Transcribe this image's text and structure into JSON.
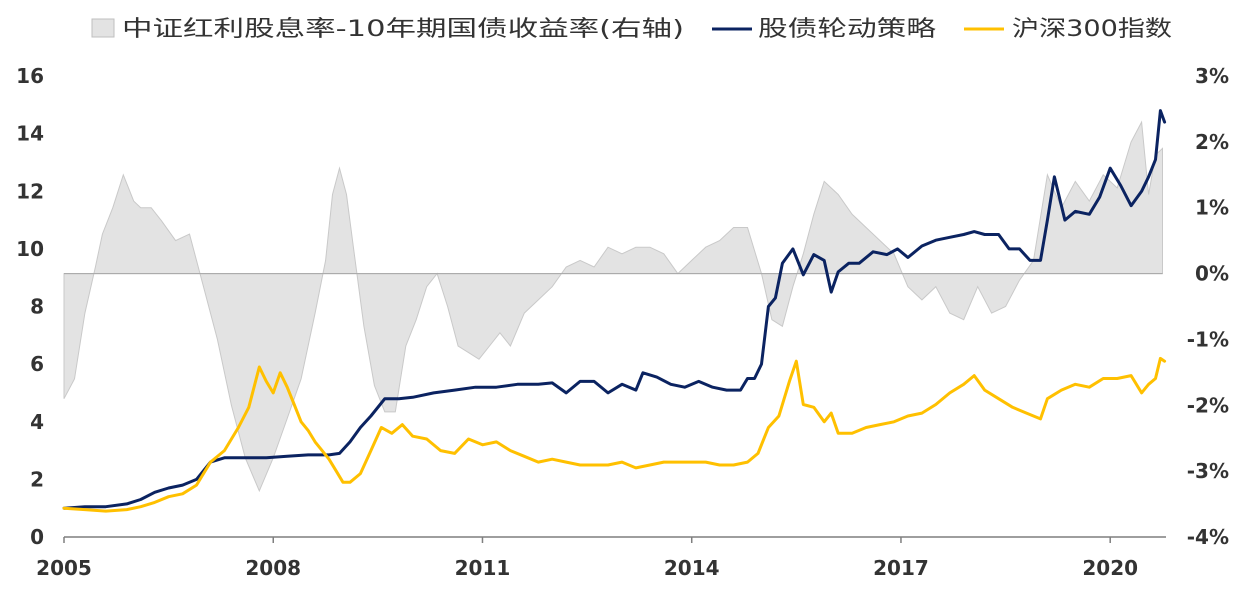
{
  "chart_data": {
    "type": "line",
    "legend": {
      "placement": "top",
      "entries": [
        {
          "label": "中证红利股息率-10年期国债收益率(右轴)",
          "style": "area",
          "color": "#e3e3e3"
        },
        {
          "label": "股债轮动策略",
          "style": "line",
          "color": "#0b2361"
        },
        {
          "label": "沪深300指数",
          "style": "line",
          "color": "#ffc000"
        }
      ]
    },
    "x_axis": {
      "min": 2005,
      "max": 2020.8,
      "ticks": [
        "2005",
        "2008",
        "2011",
        "2014",
        "2017",
        "2020"
      ]
    },
    "y_left": {
      "min": 0,
      "max": 16,
      "ticks": [
        "0",
        "2",
        "4",
        "6",
        "8",
        "10",
        "12",
        "14",
        "16"
      ]
    },
    "y_right": {
      "min": -4,
      "max": 3,
      "ticks": [
        "-4%",
        "-3%",
        "-2%",
        "-1%",
        "0%",
        "1%",
        "2%",
        "3%"
      ]
    },
    "grid": false,
    "series": [
      {
        "name": "中证红利股息率-10年期国债收益率(右轴)",
        "axis": "right",
        "type": "area",
        "color": "#e3e3e3",
        "x": [
          2005.0,
          2005.15,
          2005.3,
          2005.45,
          2005.55,
          2005.7,
          2005.85,
          2006.0,
          2006.1,
          2006.25,
          2006.4,
          2006.6,
          2006.8,
          2007.0,
          2007.2,
          2007.4,
          2007.6,
          2007.8,
          2008.0,
          2008.2,
          2008.4,
          2008.6,
          2008.75,
          2008.85,
          2008.95,
          2009.05,
          2009.15,
          2009.3,
          2009.45,
          2009.6,
          2009.75,
          2009.9,
          2010.05,
          2010.2,
          2010.35,
          2010.5,
          2010.65,
          2010.8,
          2010.95,
          2011.1,
          2011.25,
          2011.4,
          2011.6,
          2011.8,
          2012.0,
          2012.2,
          2012.4,
          2012.6,
          2012.8,
          2013.0,
          2013.2,
          2013.4,
          2013.6,
          2013.8,
          2014.0,
          2014.2,
          2014.4,
          2014.6,
          2014.8,
          2015.0,
          2015.15,
          2015.3,
          2015.45,
          2015.6,
          2015.75,
          2015.9,
          2016.1,
          2016.3,
          2016.5,
          2016.7,
          2016.9,
          2017.1,
          2017.3,
          2017.5,
          2017.7,
          2017.9,
          2018.1,
          2018.3,
          2018.5,
          2018.7,
          2018.9,
          2019.1,
          2019.3,
          2019.5,
          2019.7,
          2019.9,
          2020.1,
          2020.3,
          2020.45,
          2020.55,
          2020.65,
          2020.75
        ],
        "values": [
          -1.9,
          -1.6,
          -0.6,
          0.1,
          0.6,
          1.0,
          1.5,
          1.1,
          1.0,
          1.0,
          0.8,
          0.5,
          0.6,
          -0.2,
          -1.0,
          -2.0,
          -2.8,
          -3.3,
          -2.8,
          -2.2,
          -1.6,
          -0.6,
          0.2,
          1.2,
          1.6,
          1.2,
          0.4,
          -0.8,
          -1.7,
          -2.1,
          -2.1,
          -1.1,
          -0.7,
          -0.2,
          0.0,
          -0.5,
          -1.1,
          -1.2,
          -1.3,
          -1.1,
          -0.9,
          -1.1,
          -0.6,
          -0.4,
          -0.2,
          0.1,
          0.2,
          0.1,
          0.4,
          0.3,
          0.4,
          0.4,
          0.3,
          0.0,
          0.2,
          0.4,
          0.5,
          0.7,
          0.7,
          0.0,
          -0.7,
          -0.8,
          -0.2,
          0.3,
          0.9,
          1.4,
          1.2,
          0.9,
          0.7,
          0.5,
          0.3,
          -0.2,
          -0.4,
          -0.2,
          -0.6,
          -0.7,
          -0.2,
          -0.6,
          -0.5,
          -0.1,
          0.2,
          1.5,
          1.0,
          1.4,
          1.1,
          1.5,
          1.3,
          2.0,
          2.3,
          1.2,
          1.8,
          1.9
        ]
      },
      {
        "name": "股债轮动策略",
        "axis": "left",
        "type": "line",
        "color": "#0b2361",
        "x": [
          2005.0,
          2005.3,
          2005.6,
          2005.9,
          2006.1,
          2006.3,
          2006.5,
          2006.7,
          2006.9,
          2007.1,
          2007.3,
          2007.6,
          2007.9,
          2008.2,
          2008.5,
          2008.65,
          2008.8,
          2008.95,
          2009.1,
          2009.25,
          2009.4,
          2009.6,
          2009.8,
          2010.0,
          2010.3,
          2010.6,
          2010.9,
          2011.2,
          2011.5,
          2011.8,
          2012.0,
          2012.2,
          2012.4,
          2012.6,
          2012.8,
          2013.0,
          2013.2,
          2013.3,
          2013.5,
          2013.7,
          2013.9,
          2014.1,
          2014.3,
          2014.5,
          2014.7,
          2014.8,
          2014.9,
          2015.0,
          2015.1,
          2015.2,
          2015.3,
          2015.45,
          2015.6,
          2015.75,
          2015.9,
          2016.0,
          2016.1,
          2016.25,
          2016.4,
          2016.6,
          2016.8,
          2016.95,
          2017.1,
          2017.3,
          2017.5,
          2017.7,
          2017.9,
          2018.05,
          2018.2,
          2018.4,
          2018.55,
          2018.7,
          2018.85,
          2019.0,
          2019.1,
          2019.2,
          2019.35,
          2019.5,
          2019.7,
          2019.85,
          2020.0,
          2020.15,
          2020.3,
          2020.45,
          2020.55,
          2020.65,
          2020.72,
          2020.78
        ],
        "values": [
          1.0,
          1.05,
          1.05,
          1.15,
          1.3,
          1.55,
          1.7,
          1.8,
          2.0,
          2.6,
          2.75,
          2.75,
          2.75,
          2.8,
          2.85,
          2.85,
          2.85,
          2.9,
          3.3,
          3.8,
          4.2,
          4.8,
          4.8,
          4.85,
          5.0,
          5.1,
          5.2,
          5.2,
          5.3,
          5.3,
          5.35,
          5.0,
          5.4,
          5.4,
          5.0,
          5.3,
          5.1,
          5.7,
          5.55,
          5.3,
          5.2,
          5.4,
          5.2,
          5.1,
          5.1,
          5.5,
          5.5,
          6.0,
          8.0,
          8.3,
          9.5,
          10.0,
          9.1,
          9.8,
          9.6,
          8.5,
          9.2,
          9.5,
          9.5,
          9.9,
          9.8,
          10.0,
          9.7,
          10.1,
          10.3,
          10.4,
          10.5,
          10.6,
          10.5,
          10.5,
          10.0,
          10.0,
          9.6,
          9.6,
          11.0,
          12.5,
          11.0,
          11.3,
          11.2,
          11.8,
          12.8,
          12.2,
          11.5,
          12.0,
          12.5,
          13.1,
          14.8,
          14.4
        ]
      },
      {
        "name": "沪深300指数",
        "axis": "left",
        "type": "line",
        "color": "#ffc000",
        "x": [
          2005.0,
          2005.3,
          2005.6,
          2005.9,
          2006.1,
          2006.3,
          2006.5,
          2006.7,
          2006.9,
          2007.1,
          2007.3,
          2007.5,
          2007.65,
          2007.8,
          2007.9,
          2008.0,
          2008.1,
          2008.2,
          2008.3,
          2008.4,
          2008.5,
          2008.6,
          2008.7,
          2008.8,
          2008.9,
          2009.0,
          2009.1,
          2009.25,
          2009.4,
          2009.55,
          2009.7,
          2009.85,
          2010.0,
          2010.2,
          2010.4,
          2010.6,
          2010.8,
          2011.0,
          2011.2,
          2011.4,
          2011.6,
          2011.8,
          2012.0,
          2012.2,
          2012.4,
          2012.6,
          2012.8,
          2013.0,
          2013.2,
          2013.4,
          2013.6,
          2013.8,
          2014.0,
          2014.2,
          2014.4,
          2014.6,
          2014.8,
          2014.95,
          2015.1,
          2015.25,
          2015.4,
          2015.5,
          2015.6,
          2015.75,
          2015.9,
          2016.0,
          2016.1,
          2016.3,
          2016.5,
          2016.7,
          2016.9,
          2017.1,
          2017.3,
          2017.5,
          2017.7,
          2017.9,
          2018.05,
          2018.2,
          2018.4,
          2018.6,
          2018.8,
          2019.0,
          2019.1,
          2019.3,
          2019.5,
          2019.7,
          2019.9,
          2020.1,
          2020.3,
          2020.45,
          2020.55,
          2020.65,
          2020.72,
          2020.78
        ],
        "values": [
          1.0,
          0.95,
          0.9,
          0.95,
          1.05,
          1.2,
          1.4,
          1.5,
          1.8,
          2.6,
          3.0,
          3.8,
          4.5,
          5.9,
          5.4,
          5.0,
          5.7,
          5.2,
          4.6,
          4.0,
          3.7,
          3.3,
          3.0,
          2.7,
          2.3,
          1.9,
          1.9,
          2.2,
          3.0,
          3.8,
          3.6,
          3.9,
          3.5,
          3.4,
          3.0,
          2.9,
          3.4,
          3.2,
          3.3,
          3.0,
          2.8,
          2.6,
          2.7,
          2.6,
          2.5,
          2.5,
          2.5,
          2.6,
          2.4,
          2.5,
          2.6,
          2.6,
          2.6,
          2.6,
          2.5,
          2.5,
          2.6,
          2.9,
          3.8,
          4.2,
          5.4,
          6.1,
          4.6,
          4.5,
          4.0,
          4.3,
          3.6,
          3.6,
          3.8,
          3.9,
          4.0,
          4.2,
          4.3,
          4.6,
          5.0,
          5.3,
          5.6,
          5.1,
          4.8,
          4.5,
          4.3,
          4.1,
          4.8,
          5.1,
          5.3,
          5.2,
          5.5,
          5.5,
          5.6,
          5.0,
          5.3,
          5.5,
          6.2,
          6.1
        ]
      }
    ]
  }
}
